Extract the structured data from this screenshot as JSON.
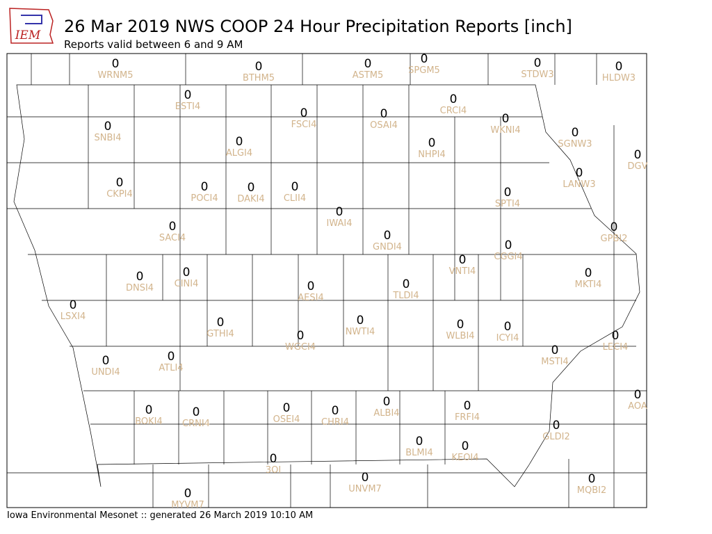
{
  "header": {
    "logo_text": "IEM",
    "title": "26 Mar 2019 NWS COOP 24 Hour Precipitation Reports [inch]",
    "subtitle": "Reports valid between 6 and 9 AM"
  },
  "stations": [
    {
      "name": "WRNM5",
      "value": 0
    },
    {
      "name": "BTHM5",
      "value": 0
    },
    {
      "name": "ASTM5",
      "value": 0
    },
    {
      "name": "SPGM5",
      "value": 0
    },
    {
      "name": "STDW3",
      "value": 0
    },
    {
      "name": "HLDW3",
      "value": 0
    },
    {
      "name": "ESTI4",
      "value": 0
    },
    {
      "name": "CRCI4",
      "value": 0
    },
    {
      "name": "FSCI4",
      "value": 0
    },
    {
      "name": "OSAI4",
      "value": 0
    },
    {
      "name": "WKNI4",
      "value": 0
    },
    {
      "name": "SNBI4",
      "value": 0
    },
    {
      "name": "SGNW3",
      "value": 0
    },
    {
      "name": "ALGI4",
      "value": 0
    },
    {
      "name": "NHPI4",
      "value": 0
    },
    {
      "name": "DGV",
      "value": 0
    },
    {
      "name": "LANW3",
      "value": 0
    },
    {
      "name": "CKPI4",
      "value": 0
    },
    {
      "name": "POCI4",
      "value": 0
    },
    {
      "name": "DAKI4",
      "value": 0
    },
    {
      "name": "CLII4",
      "value": 0
    },
    {
      "name": "SPTI4",
      "value": 0
    },
    {
      "name": "IWAI4",
      "value": 0
    },
    {
      "name": "SACI4",
      "value": 0
    },
    {
      "name": "GPBI2",
      "value": 0
    },
    {
      "name": "GNDI4",
      "value": 0
    },
    {
      "name": "CGGI4",
      "value": 0
    },
    {
      "name": "VNTI4",
      "value": 0
    },
    {
      "name": "DNSI4",
      "value": 0
    },
    {
      "name": "CINI4",
      "value": 0
    },
    {
      "name": "MKTI4",
      "value": 0
    },
    {
      "name": "TLDI4",
      "value": 0
    },
    {
      "name": "AESI4",
      "value": 0
    },
    {
      "name": "LSXI4",
      "value": 0
    },
    {
      "name": "NWTI4",
      "value": 0
    },
    {
      "name": "GTHI4",
      "value": 0
    },
    {
      "name": "WLBI4",
      "value": 0
    },
    {
      "name": "ICYI4",
      "value": 0
    },
    {
      "name": "LECI4",
      "value": 0
    },
    {
      "name": "WGCI4",
      "value": 0
    },
    {
      "name": "MSTI4",
      "value": 0
    },
    {
      "name": "ATLI4",
      "value": 0
    },
    {
      "name": "UNDI4",
      "value": 0
    },
    {
      "name": "AOA",
      "value": 0
    },
    {
      "name": "BOKI4",
      "value": 0
    },
    {
      "name": "CRNI4",
      "value": 0
    },
    {
      "name": "OSEI4",
      "value": 0
    },
    {
      "name": "CHRI4",
      "value": 0
    },
    {
      "name": "ALBI4",
      "value": 0
    },
    {
      "name": "FRFI4",
      "value": 0
    },
    {
      "name": "GLDI2",
      "value": 0
    },
    {
      "name": "BLMI4",
      "value": 0
    },
    {
      "name": "KEOI4",
      "value": 0
    },
    {
      "name": "3OI",
      "value": 0
    },
    {
      "name": "UNVM7",
      "value": 0
    },
    {
      "name": "MQBI2",
      "value": 0
    },
    {
      "name": "MYVM7",
      "value": 0
    }
  ],
  "footer": {
    "text": "Iowa Environmental Mesonet :: generated 26 March 2019 10:10 AM"
  }
}
